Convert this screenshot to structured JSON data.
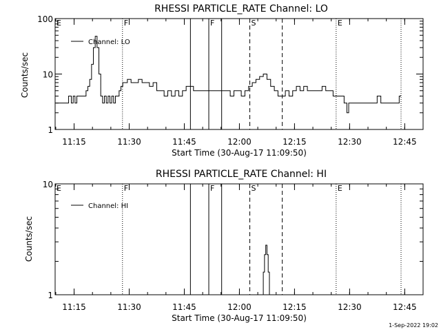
{
  "footer_timestamp": "1-Sep-2022 19:02",
  "chart_data": [
    {
      "type": "line",
      "title": "RHESSI PARTICLE_RATE Channel: LO",
      "xlabel": "Start Time (30-Aug-17 11:09:50)",
      "ylabel": "Counts/sec",
      "y_scale": "log",
      "ylim": [
        1,
        100
      ],
      "y_ticks": [
        {
          "value": 1,
          "label": "1"
        },
        {
          "value": 10,
          "label": "10"
        },
        {
          "value": 100,
          "label": "100"
        }
      ],
      "xlim": [
        "11:09:50",
        "12:50:00"
      ],
      "x_ticks": [
        "11:15",
        "11:30",
        "11:45",
        "12:00",
        "12:15",
        "12:30",
        "12:45"
      ],
      "legend": "Channel: LO",
      "legend_position": "top-left",
      "markers": [
        {
          "time": "11:09:50",
          "style": "none",
          "label": "E"
        },
        {
          "time": "11:28:10",
          "style": "dotted",
          "label": "F"
        },
        {
          "time": "11:46:40",
          "style": "solid",
          "label": ""
        },
        {
          "time": "11:51:40",
          "style": "solid",
          "label": "F"
        },
        {
          "time": "11:55:10",
          "style": "solid",
          "label": ""
        },
        {
          "time": "12:02:50",
          "style": "dashed",
          "label": "S"
        },
        {
          "time": "12:11:40",
          "style": "dashed",
          "label": ""
        },
        {
          "time": "12:26:20",
          "style": "dotted",
          "label": "E"
        },
        {
          "time": "12:44:00",
          "style": "dotted",
          "label": ""
        }
      ],
      "series": [
        {
          "x": [
            "11:10:00",
            "11:11:00",
            "11:12:00",
            "11:13:00",
            "11:14:00",
            "11:14:30",
            "11:15:00",
            "11:15:30",
            "11:16:00",
            "11:17:00",
            "11:18:00",
            "11:18:30",
            "11:19:00",
            "11:19:30",
            "11:20:00",
            "11:20:30",
            "11:21:00",
            "11:21:30",
            "11:22:00",
            "11:22:30",
            "11:23:00",
            "11:23:30",
            "11:24:00",
            "11:24:30",
            "11:25:00",
            "11:25:30",
            "11:26:00",
            "11:26:30",
            "11:27:00",
            "11:27:30",
            "11:28:00",
            "11:28:30",
            "11:29:00",
            "11:30:00",
            "11:31:00",
            "11:32:00",
            "11:33:00",
            "11:34:00",
            "11:35:00",
            "11:36:00",
            "11:37:00",
            "11:38:00",
            "11:39:00",
            "11:40:00",
            "11:41:00",
            "11:42:00",
            "11:43:00",
            "11:44:00",
            "11:45:00",
            "11:46:00",
            "11:47:00",
            "11:48:00",
            "11:49:00",
            "11:50:00",
            "11:51:00",
            "11:52:00",
            "11:53:00",
            "11:54:00",
            "11:55:00",
            "11:56:00",
            "11:57:00",
            "11:58:00",
            "11:59:00",
            "12:00:00",
            "12:01:00",
            "12:02:00",
            "12:03:00",
            "12:04:00",
            "12:05:00",
            "12:06:00",
            "12:07:00",
            "12:08:00",
            "12:09:00",
            "12:10:00",
            "12:11:00",
            "12:12:00",
            "12:13:00",
            "12:14:00",
            "12:15:00",
            "12:16:00",
            "12:17:00",
            "12:18:00",
            "12:19:00",
            "12:20:00",
            "12:21:00",
            "12:22:00",
            "12:23:00",
            "12:24:00",
            "12:25:00",
            "12:26:00",
            "12:27:00",
            "12:28:00",
            "12:29:00",
            "12:29:30",
            "12:30:00",
            "12:31:00",
            "12:32:00",
            "12:33:00",
            "12:34:00",
            "12:35:00",
            "12:36:00",
            "12:37:00",
            "12:38:00",
            "12:39:00",
            "12:40:00",
            "12:41:00",
            "12:42:00",
            "12:43:00",
            "12:44:00"
          ],
          "y": [
            3,
            3,
            3,
            3,
            4,
            3,
            4,
            3,
            4,
            4,
            4,
            5,
            6,
            8,
            15,
            30,
            48,
            30,
            10,
            4,
            3,
            4,
            3,
            4,
            3,
            4,
            3,
            4,
            4,
            5,
            6,
            7,
            7,
            8,
            7,
            7,
            8,
            7,
            7,
            6,
            7,
            5,
            5,
            4,
            5,
            4,
            5,
            4,
            5,
            6,
            6,
            5,
            5,
            5,
            5,
            5,
            5,
            5,
            5,
            5,
            5,
            4,
            5,
            5,
            4,
            5,
            6,
            7,
            8,
            9,
            10,
            8,
            6,
            5,
            4,
            4,
            5,
            4,
            5,
            6,
            5,
            6,
            5,
            5,
            5,
            5,
            6,
            5,
            5,
            4,
            4,
            4,
            3,
            2,
            3,
            3,
            3,
            3,
            3,
            3,
            3,
            3,
            4,
            3,
            3,
            3,
            3,
            3,
            4
          ]
        }
      ]
    },
    {
      "type": "line",
      "title": "RHESSI PARTICLE_RATE Channel: HI",
      "xlabel": "Start Time (30-Aug-17 11:09:50)",
      "ylabel": "Counts/sec",
      "y_scale": "log",
      "ylim": [
        1,
        10
      ],
      "y_ticks": [
        {
          "value": 1,
          "label": "1"
        },
        {
          "value": 10,
          "label": "10"
        }
      ],
      "xlim": [
        "11:09:50",
        "12:50:00"
      ],
      "x_ticks": [
        "11:15",
        "11:30",
        "11:45",
        "12:00",
        "12:15",
        "12:30",
        "12:45"
      ],
      "legend": "Channel: HI",
      "legend_position": "top-left",
      "markers": [
        {
          "time": "11:09:50",
          "style": "none",
          "label": "E"
        },
        {
          "time": "11:28:10",
          "style": "dotted",
          "label": "F"
        },
        {
          "time": "11:46:40",
          "style": "solid",
          "label": ""
        },
        {
          "time": "11:51:40",
          "style": "solid",
          "label": "F"
        },
        {
          "time": "11:55:10",
          "style": "solid",
          "label": ""
        },
        {
          "time": "12:02:50",
          "style": "dashed",
          "label": "S"
        },
        {
          "time": "12:11:40",
          "style": "dashed",
          "label": ""
        },
        {
          "time": "12:26:20",
          "style": "dotted",
          "label": "E"
        },
        {
          "time": "12:44:00",
          "style": "dotted",
          "label": ""
        }
      ],
      "series": [
        {
          "x": [
            "12:06:20",
            "12:06:40",
            "12:07:00",
            "12:07:20",
            "12:07:40",
            "12:08:00",
            "12:08:20"
          ],
          "y": [
            1,
            1.6,
            2.3,
            2.8,
            2.3,
            1.6,
            1
          ]
        }
      ]
    }
  ]
}
